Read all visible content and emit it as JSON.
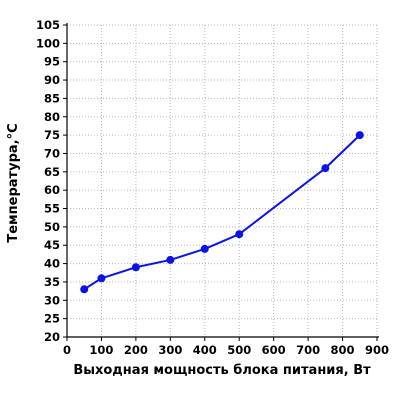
{
  "chart_data": {
    "type": "line",
    "title": "",
    "xlabel": "Выходная мощность блока питания, Вт",
    "ylabel": "Температура,°C",
    "xlim": [
      0,
      900
    ],
    "ylim": [
      20,
      105
    ],
    "x_ticks": [
      0,
      100,
      200,
      300,
      400,
      500,
      600,
      700,
      800,
      900
    ],
    "y_ticks": [
      20,
      25,
      30,
      35,
      40,
      45,
      50,
      55,
      60,
      65,
      70,
      75,
      80,
      85,
      90,
      95,
      100,
      105
    ],
    "grid": true,
    "series": [
      {
        "color": "#0a14e6",
        "x": [
          50,
          100,
          200,
          300,
          400,
          500,
          750,
          850
        ],
        "y": [
          33,
          36,
          39,
          41,
          44,
          48,
          66,
          75
        ]
      }
    ]
  }
}
